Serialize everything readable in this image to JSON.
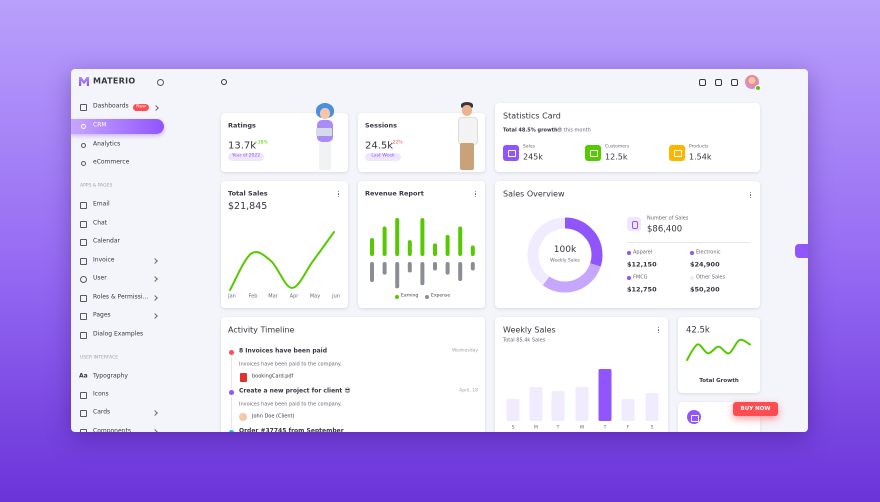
{
  "brand": "MATERIO",
  "sidebar": {
    "menu": [
      {
        "label": "Dashboards",
        "badge": "New"
      },
      {
        "label": "CRM"
      },
      {
        "label": "Analytics"
      },
      {
        "label": "eCommerce"
      }
    ],
    "apps_header": "APPS & PAGES",
    "apps": [
      "Email",
      "Chat",
      "Calendar",
      "Invoice",
      "User",
      "Roles & Permissi...",
      "Pages",
      "Dialog Examples"
    ],
    "ui_header": "USER INTERFACE",
    "typography_icon": "Aa",
    "ui": [
      "Typography",
      "Icons",
      "Cards",
      "Components"
    ]
  },
  "ratings": {
    "title": "Ratings",
    "value": "13.7k",
    "change": "+38%",
    "chip": "Year of 2022"
  },
  "sessions": {
    "title": "Sessions",
    "value": "24.5k",
    "change": "-22%",
    "chip": "Last Week"
  },
  "statistics": {
    "title": "Statistics Card",
    "growth": "Total 48.5% growth",
    "period": "😎 this month",
    "items": [
      {
        "label": "Sales",
        "value": "245k",
        "color": "#9155fd"
      },
      {
        "label": "Customers",
        "value": "12.5k",
        "color": "#56ca00"
      },
      {
        "label": "Products",
        "value": "1.54k",
        "color": "#ffb400"
      }
    ]
  },
  "total_sales": {
    "title": "Total Sales",
    "value": "$21,845",
    "chart": {
      "type": "line",
      "categories": [
        "Jan",
        "Feb",
        "Mar",
        "Apr",
        "May",
        "Jun"
      ],
      "values": [
        10,
        45,
        38,
        12,
        38,
        66
      ],
      "color": "#56ca00"
    }
  },
  "revenue": {
    "title": "Revenue Report",
    "chart": {
      "type": "bar",
      "series": [
        {
          "name": "Earning",
          "color": "#56ca00",
          "values": [
            17,
            28,
            36,
            15,
            36,
            12,
            20,
            28,
            10
          ]
        },
        {
          "name": "Expense",
          "color": "#8a8d93",
          "values": [
            19,
            12,
            25,
            10,
            22,
            8,
            12,
            18,
            8
          ]
        }
      ]
    }
  },
  "sales_overview": {
    "title": "Sales Overview",
    "center_value": "100k",
    "center_label": "Weekly Sales",
    "donut": {
      "type": "pie",
      "values": [
        30,
        30,
        40
      ],
      "colors": [
        "#9155fd",
        "#c6a7fe",
        "#f1ebfe"
      ]
    },
    "number_label": "Number of Sales",
    "number_value": "$86,400",
    "items": [
      {
        "label": "Apparel",
        "value": "$12,150",
        "color": "#9155fd"
      },
      {
        "label": "Electronic",
        "value": "$24,900",
        "color": "#9155fd"
      },
      {
        "label": "FMCG",
        "value": "$12,750",
        "color": "#9155fd"
      },
      {
        "label": "Other Sales",
        "value": "$50,200",
        "color": "#f1ebfe"
      }
    ]
  },
  "activity": {
    "title": "Activity Timeline",
    "items": [
      {
        "title": "8 Invoices have been paid",
        "time": "Wednesday",
        "desc": "Invoices have been paid to the company.",
        "extra": "bookingCard.pdf",
        "color": "#ff4c51"
      },
      {
        "title": "Create a new project for client 😎",
        "time": "April, 18",
        "desc": "Invoices have been paid to the company.",
        "extra": "John Doe (Client)",
        "color": "#9155fd"
      },
      {
        "title": "Order #37745 from September",
        "color": "#16b1ff"
      }
    ]
  },
  "weekly_sales": {
    "title": "Weekly Sales",
    "subtitle": "Total 85.4k Sales",
    "chart": {
      "type": "bar",
      "categories": [
        "S",
        "M",
        "T",
        "W",
        "T",
        "F",
        "S"
      ],
      "values": [
        22,
        34,
        30,
        34,
        52,
        22,
        28
      ],
      "colors": [
        "#f1ebfe",
        "#f1ebfe",
        "#f1ebfe",
        "#f1ebfe",
        "#9155fd",
        "#f1ebfe",
        "#f1ebfe"
      ]
    }
  },
  "growth": {
    "value": "42.5k",
    "label": "Total Growth",
    "chart": {
      "type": "line",
      "values": [
        2,
        16,
        8,
        14,
        8,
        20,
        16
      ],
      "color": "#56ca00"
    }
  },
  "buy_now": "BUY NOW"
}
